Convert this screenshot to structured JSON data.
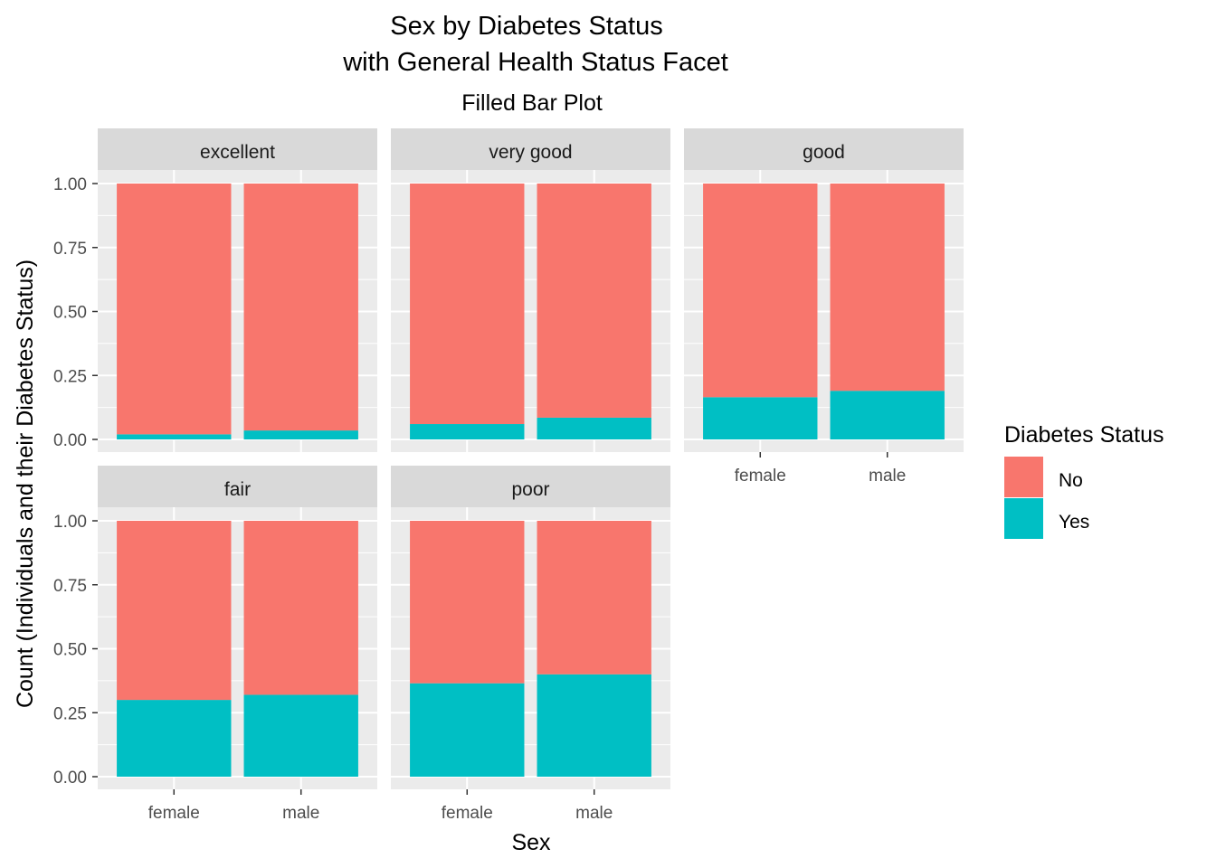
{
  "chart_data": {
    "type": "bar",
    "stacked": "fill",
    "title_line1": "Sex by Diabetes Status",
    "title_line2": "with General Health Status Facet",
    "subtitle": "Filled Bar Plot",
    "xlabel": "Sex",
    "ylabel": "Count (Individuals and their Diabetes Status)",
    "ylim": [
      0,
      1
    ],
    "y_ticks": [
      "0.00",
      "0.25",
      "0.50",
      "0.75",
      "1.00"
    ],
    "categories": [
      "female",
      "male"
    ],
    "legend": {
      "title": "Diabetes Status",
      "position": "right",
      "entries": [
        {
          "label": "No",
          "color": "#F8766D"
        },
        {
          "label": "Yes",
          "color": "#00BFC4"
        }
      ]
    },
    "facets": [
      {
        "label": "excellent",
        "series": [
          {
            "name": "No",
            "values": [
              0.98,
              0.965
            ]
          },
          {
            "name": "Yes",
            "values": [
              0.02,
              0.035
            ]
          }
        ]
      },
      {
        "label": "very good",
        "series": [
          {
            "name": "No",
            "values": [
              0.94,
              0.915
            ]
          },
          {
            "name": "Yes",
            "values": [
              0.06,
              0.085
            ]
          }
        ]
      },
      {
        "label": "good",
        "series": [
          {
            "name": "No",
            "values": [
              0.835,
              0.81
            ]
          },
          {
            "name": "Yes",
            "values": [
              0.165,
              0.19
            ]
          }
        ]
      },
      {
        "label": "fair",
        "series": [
          {
            "name": "No",
            "values": [
              0.7,
              0.68
            ]
          },
          {
            "name": "Yes",
            "values": [
              0.3,
              0.32
            ]
          }
        ]
      },
      {
        "label": "poor",
        "series": [
          {
            "name": "No",
            "values": [
              0.635,
              0.6
            ]
          },
          {
            "name": "Yes",
            "values": [
              0.365,
              0.4
            ]
          }
        ]
      }
    ]
  },
  "colors": {
    "panel_bg": "#EBEBEB",
    "strip_bg": "#D9D9D9",
    "grid": "#FFFFFF"
  }
}
